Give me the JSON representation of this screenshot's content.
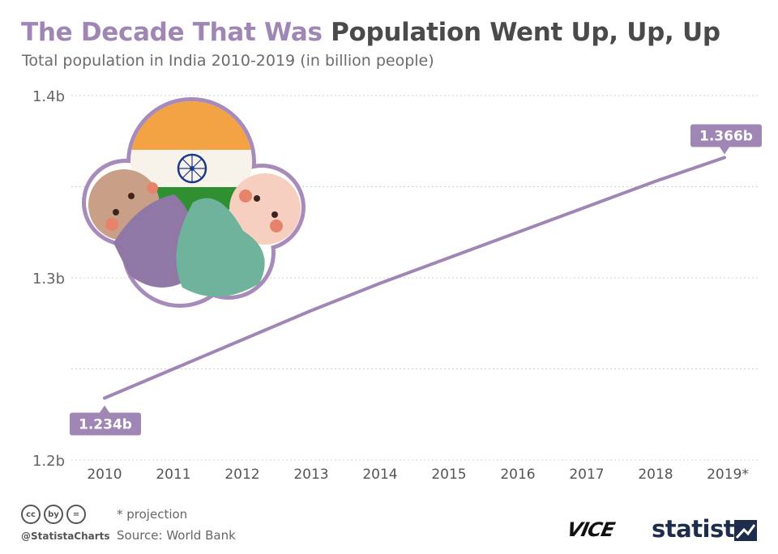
{
  "header": {
    "title_accent": "The Decade That Was",
    "title_main": "Population Went Up, Up, Up",
    "subtitle": "Total population in India 2010-2019 (in billion people)"
  },
  "chart_data": {
    "type": "line",
    "x": [
      "2010",
      "2011",
      "2012",
      "2013",
      "2014",
      "2015",
      "2016",
      "2017",
      "2018",
      "2019*"
    ],
    "series": [
      {
        "values": [
          1.234,
          1.25,
          1.266,
          1.282,
          1.297,
          1.311,
          1.325,
          1.339,
          1.353,
          1.366
        ],
        "color": "#9f86b4"
      }
    ],
    "yticks": [
      1.2,
      1.3,
      1.4
    ],
    "ytick_labels": [
      "1.2b",
      "1.3b",
      "1.4b"
    ],
    "ylim": [
      1.2,
      1.4
    ],
    "grid": true,
    "annotations": [
      {
        "index": 0,
        "label": "1.234b",
        "position": "below"
      },
      {
        "index": 9,
        "label": "1.366b",
        "position": "above"
      }
    ]
  },
  "footer": {
    "note": "* projection",
    "source": "Source: World Bank",
    "handle": "@StatistaCharts",
    "cc_icons": [
      "cc",
      "by",
      "="
    ],
    "brand_1": "VICE",
    "brand_2": "statista"
  },
  "illustration": {
    "icon": "india-flag-people-icon",
    "colors": {
      "saffron": "#f3a244",
      "green": "#2f8f31",
      "chakra": "#1d3a8a",
      "outline": "#a78bbb",
      "purple": "#8f77a6",
      "teal": "#6fb39c"
    }
  }
}
